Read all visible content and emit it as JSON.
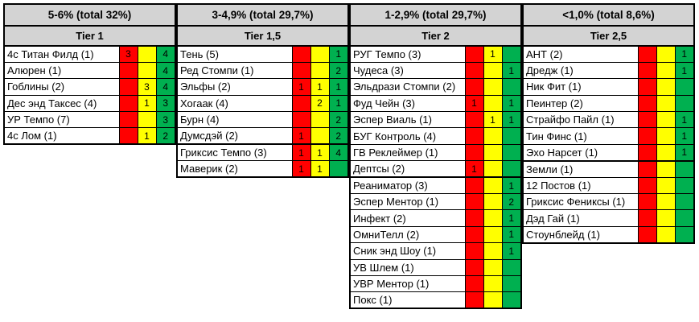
{
  "chart_data": {
    "type": "table",
    "description": "Tier list table with frequency headers and red/yellow/green count cells per deck",
    "value_columns": [
      "red",
      "yellow",
      "green"
    ],
    "colors": {
      "red": "#FF0000",
      "yellow": "#FFFF00",
      "green": "#00B050",
      "header_bg": "#D3D3D3",
      "border": "#000000",
      "row_bg": "#FFFFFF"
    },
    "groups": [
      {
        "percent_header": "5-6% (total 32%)",
        "tier": "Tier 1",
        "section_start_row": null,
        "rows": [
          {
            "name": "4с Титан Филд (1)",
            "red": "3",
            "yellow": "",
            "green": "4"
          },
          {
            "name": "Алюрен (1)",
            "red": "",
            "yellow": "",
            "green": "4"
          },
          {
            "name": "Гоблины (2)",
            "red": "",
            "yellow": "3",
            "green": "4"
          },
          {
            "name": "Дес энд Таксес (4)",
            "red": "",
            "yellow": "1",
            "green": "3"
          },
          {
            "name": "УР Темпо (7)",
            "red": "",
            "yellow": "",
            "green": "3"
          },
          {
            "name": "4с Лом (1)",
            "red": "",
            "yellow": "1",
            "green": "2"
          }
        ]
      },
      {
        "percent_header": "3-4,9% (total 29,7%)",
        "tier": "Tier 1,5",
        "section_start_row": 6,
        "rows": [
          {
            "name": "Тень (5)",
            "red": "",
            "yellow": "",
            "green": "1"
          },
          {
            "name": "Ред Стомпи (1)",
            "red": "",
            "yellow": "",
            "green": "2"
          },
          {
            "name": "Эльфы (2)",
            "red": "1",
            "yellow": "1",
            "green": "1"
          },
          {
            "name": "Хогаак (4)",
            "red": "",
            "yellow": "2",
            "green": "1"
          },
          {
            "name": "Бурн (4)",
            "red": "",
            "yellow": "",
            "green": "2"
          },
          {
            "name": "Думсдэй (2)",
            "red": "1",
            "yellow": "",
            "green": "2"
          },
          {
            "name": "Гриксис Темпо (3)",
            "red": "1",
            "yellow": "1",
            "green": "4"
          },
          {
            "name": "Маверик (2)",
            "red": "1",
            "yellow": "1",
            "green": ""
          }
        ]
      },
      {
        "percent_header": "1-2,9% (total 29,7%)",
        "tier": "Tier 2",
        "section_start_row": 8,
        "rows": [
          {
            "name": "РУГ Темпо (3)",
            "red": "",
            "yellow": "1",
            "green": ""
          },
          {
            "name": "Чудеса (3)",
            "red": "",
            "yellow": "",
            "green": "1"
          },
          {
            "name": "Эльдрази Стомпи (2)",
            "red": "",
            "yellow": "",
            "green": ""
          },
          {
            "name": "Фуд Чейн (3)",
            "red": "1",
            "yellow": "",
            "green": "1"
          },
          {
            "name": "Эспер Виаль (1)",
            "red": "",
            "yellow": "1",
            "green": "1"
          },
          {
            "name": "БУГ Контроль (4)",
            "red": "",
            "yellow": "",
            "green": ""
          },
          {
            "name": "ГВ Реклеймер (1)",
            "red": "",
            "yellow": "",
            "green": ""
          },
          {
            "name": "Дептсы (2)",
            "red": "1",
            "yellow": "",
            "green": ""
          },
          {
            "name": "Реаниматор (3)",
            "red": "",
            "yellow": "",
            "green": "1"
          },
          {
            "name": "Эспер Ментор (1)",
            "red": "",
            "yellow": "",
            "green": "2"
          },
          {
            "name": "Инфект (2)",
            "red": "",
            "yellow": "",
            "green": "1"
          },
          {
            "name": "ОмниТелл (2)",
            "red": "",
            "yellow": "",
            "green": "1"
          },
          {
            "name": "Сник энд Шоу (1)",
            "red": "",
            "yellow": "",
            "green": "1"
          },
          {
            "name": "УВ Шлем (1)",
            "red": "",
            "yellow": "",
            "green": ""
          },
          {
            "name": "УВР Ментор (1)",
            "red": "",
            "yellow": "",
            "green": ""
          },
          {
            "name": "Покс (1)",
            "red": "",
            "yellow": "",
            "green": ""
          }
        ]
      },
      {
        "percent_header": "<1,0% (total 8,6%)",
        "tier": "Tier 2,5",
        "section_start_row": 7,
        "rows": [
          {
            "name": "АНТ (2)",
            "red": "",
            "yellow": "",
            "green": "1"
          },
          {
            "name": "Дредж (1)",
            "red": "",
            "yellow": "",
            "green": "1"
          },
          {
            "name": "Ник Фит (1)",
            "red": "",
            "yellow": "",
            "green": ""
          },
          {
            "name": "Пеинтер (2)",
            "red": "",
            "yellow": "",
            "green": ""
          },
          {
            "name": "Страйфо Пайл (1)",
            "red": "",
            "yellow": "",
            "green": "1"
          },
          {
            "name": "Тин Финс (1)",
            "red": "",
            "yellow": "",
            "green": "1"
          },
          {
            "name": "Эхо Нарсет (1)",
            "red": "",
            "yellow": "",
            "green": "1"
          },
          {
            "name": "Земли (1)",
            "red": "",
            "yellow": "",
            "green": ""
          },
          {
            "name": "12 Постов (1)",
            "red": "",
            "yellow": "",
            "green": ""
          },
          {
            "name": "Гриксис Фениксы (1)",
            "red": "",
            "yellow": "",
            "green": ""
          },
          {
            "name": "Дэд Гай (1)",
            "red": "",
            "yellow": "",
            "green": ""
          },
          {
            "name": "Стоунблейд (1)",
            "red": "",
            "yellow": "",
            "green": ""
          }
        ]
      }
    ]
  }
}
